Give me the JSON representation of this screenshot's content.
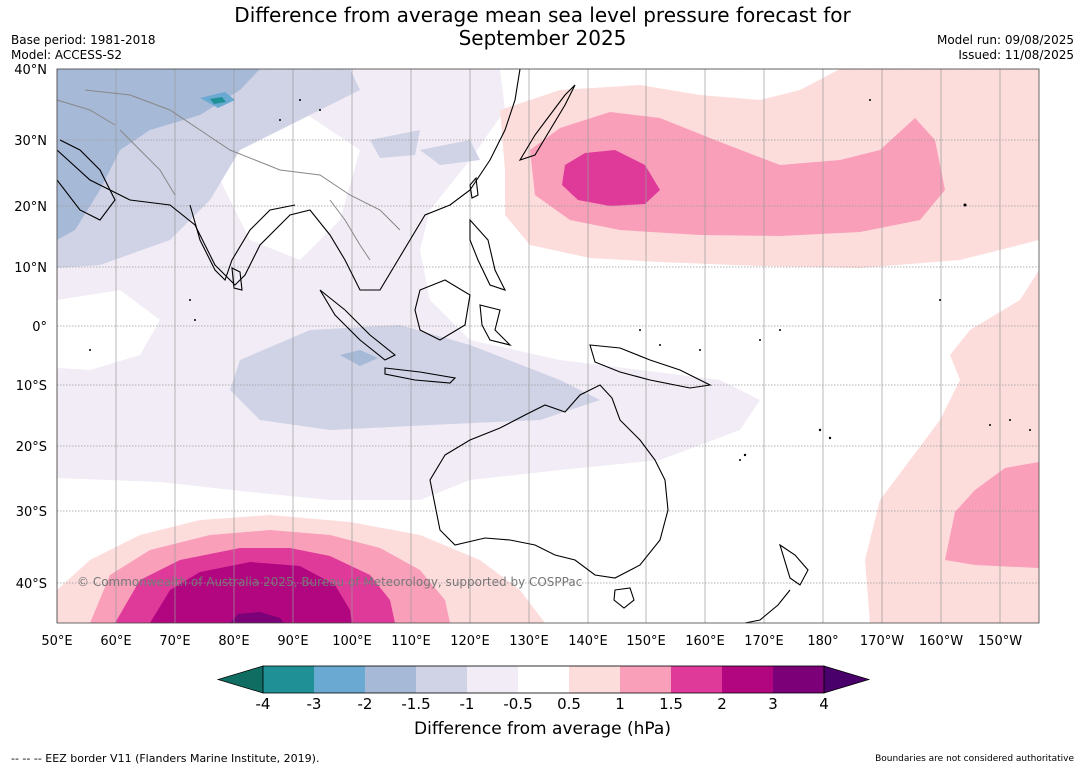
{
  "title_line1": "Difference from average mean sea level pressure forecast for",
  "title_line2": "September 2025",
  "base_period": "Base period: 1981-2018",
  "model": "Model: ACCESS-S2",
  "model_run": "Model run: 09/08/2025",
  "issued": "Issued: 11/08/2025",
  "lat_labels": [
    "40°N",
    "30°N",
    "20°N",
    "10°N",
    "0°",
    "10°S",
    "20°S",
    "30°S",
    "40°S"
  ],
  "lon_labels": [
    "50°E",
    "60°E",
    "70°E",
    "80°E",
    "90°E",
    "100°E",
    "110°E",
    "120°E",
    "130°E",
    "140°E",
    "150°E",
    "160°E",
    "170°E",
    "180°",
    "170°W",
    "160°W",
    "150°W"
  ],
  "copyright": "© Commonwealth of Australia 2025, Bureau of Meteorology, supported by COSPPac",
  "colorbar": {
    "ticks": [
      "-4",
      "-3",
      "-2",
      "-1.5",
      "-1",
      "-0.5",
      "0.5",
      "1",
      "1.5",
      "2",
      "3",
      "4"
    ],
    "colors": [
      "#0f6d61",
      "#1f9096",
      "#6aa9d2",
      "#a6b9d7",
      "#d0d2e6",
      "#f1ecf5",
      "#ffffff",
      "#fddcdc",
      "#f99fba",
      "#df3a9a",
      "#b1067f",
      "#7c0077",
      "#4a006a"
    ],
    "label": "Difference from average (hPa)"
  },
  "footer_left": "--  --  -- EEZ border V11 (Flanders Marine Institute, 2019).",
  "footer_right": "Boundaries are not considered authoritative"
}
